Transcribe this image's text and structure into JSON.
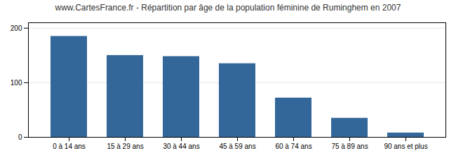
{
  "chart_data": {
    "type": "bar",
    "title": "www.CartesFrance.fr - Répartition par âge de la population féminine de Ruminghem en 2007",
    "categories": [
      "0 à 14 ans",
      "15 à 29 ans",
      "30 à 44 ans",
      "45 à 59 ans",
      "60 à 74 ans",
      "75 à 89 ans",
      "90 ans et plus"
    ],
    "values": [
      185,
      150,
      148,
      135,
      72,
      35,
      8
    ],
    "color": "#336699",
    "ylim": [
      0,
      210
    ],
    "yticks": [
      0,
      100,
      200
    ],
    "grid": true
  }
}
